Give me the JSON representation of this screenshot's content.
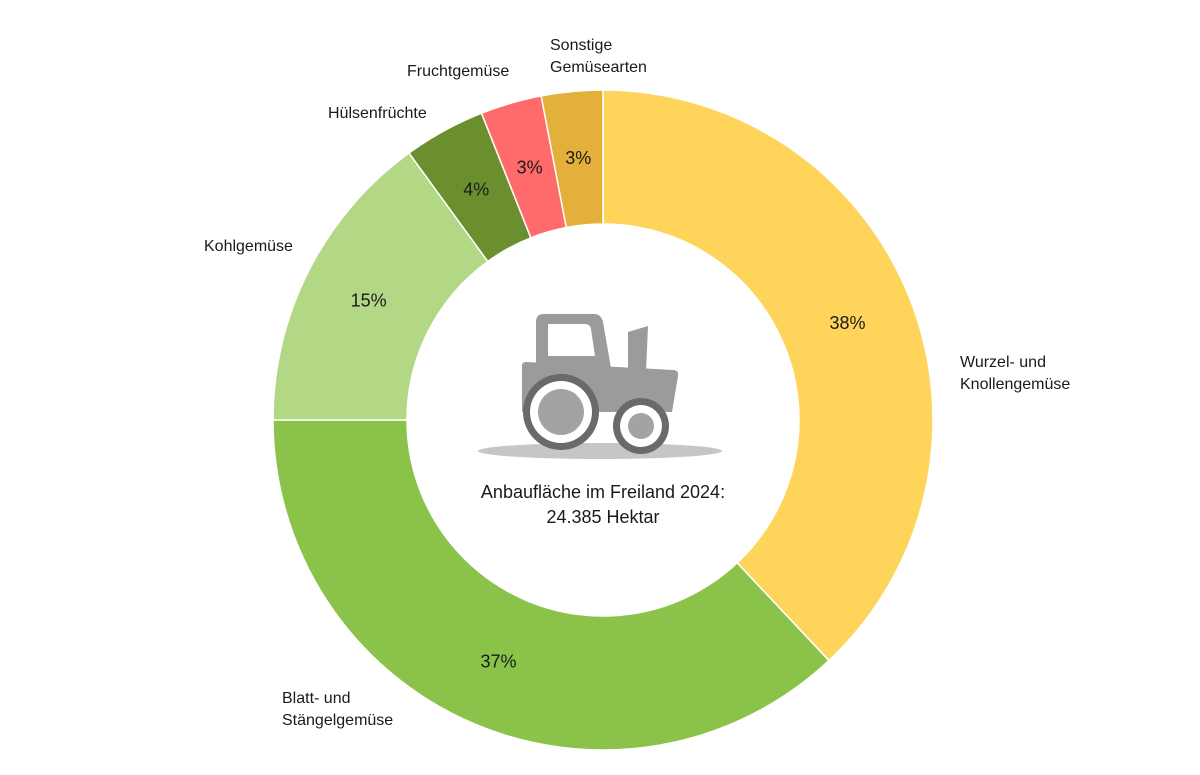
{
  "chart_data": {
    "type": "donut",
    "center": {
      "line1": "Anbaufläche im Freiland 2024:",
      "line2": "24.385 Hektar",
      "icon": "tractor-icon"
    },
    "slices": [
      {
        "name": "Wurzel- und\nKnollengemüse",
        "value": 38,
        "label": "38%",
        "color": "#FFD45A"
      },
      {
        "name": "Blatt- und\nStängelgemüse",
        "value": 37,
        "label": "37%",
        "color": "#8BC34A"
      },
      {
        "name": "Kohlgemüse",
        "value": 15,
        "label": "15%",
        "color": "#B3D885"
      },
      {
        "name": "Hülsenfrüchte",
        "value": 4,
        "label": "4%",
        "color": "#6B8F2F"
      },
      {
        "name": "Fruchtgemüse",
        "value": 3,
        "label": "3%",
        "color": "#FF6B6B"
      },
      {
        "name": "Sonstige\nGemüsearten",
        "value": 3,
        "label": "3%",
        "color": "#E3B13B"
      }
    ]
  }
}
